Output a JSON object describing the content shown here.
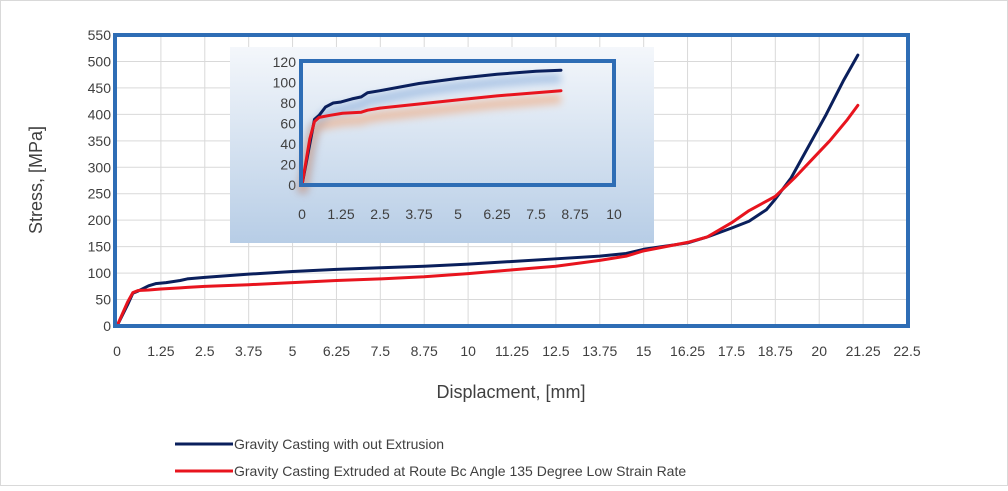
{
  "chart_data": [
    {
      "type": "line",
      "title": "",
      "xlabel": "Displacment, [mm]",
      "ylabel": "Stress, [MPa]",
      "xlim": [
        0,
        22.5
      ],
      "ylim": [
        0,
        550
      ],
      "x_ticks": [
        "0",
        "1.25",
        "2.5",
        "3.75",
        "5",
        "6.25",
        "7.5",
        "8.75",
        "10",
        "11.25",
        "12.5",
        "13.75",
        "15",
        "16.25",
        "17.5",
        "18.75",
        "20",
        "21.25",
        "22.5"
      ],
      "y_ticks": [
        "0",
        "50",
        "100",
        "150",
        "200",
        "250",
        "300",
        "350",
        "400",
        "450",
        "500",
        "550"
      ],
      "grid": true,
      "legend_position": "bottom",
      "series": [
        {
          "name": "Gravity Casting with out Extrusion",
          "color": "#0a1f5c",
          "points": [
            [
              0,
              0
            ],
            [
              0.3,
              40
            ],
            [
              0.45,
              62
            ],
            [
              0.6,
              66
            ],
            [
              0.9,
              76
            ],
            [
              1.1,
              80
            ],
            [
              1.4,
              82
            ],
            [
              1.8,
              86
            ],
            [
              2.0,
              89
            ],
            [
              2.5,
              92
            ],
            [
              3.75,
              98
            ],
            [
              5,
              103
            ],
            [
              6.25,
              107
            ],
            [
              7.5,
              110
            ],
            [
              8.75,
              113
            ],
            [
              10,
              117
            ],
            [
              11.25,
              122
            ],
            [
              12.5,
              127
            ],
            [
              13.75,
              132
            ],
            [
              14.5,
              137
            ],
            [
              15,
              145
            ],
            [
              16.25,
              157
            ],
            [
              16.8,
              168
            ],
            [
              17.5,
              185
            ],
            [
              18,
              198
            ],
            [
              18.5,
              220
            ],
            [
              18.75,
              240
            ],
            [
              19.2,
              280
            ],
            [
              19.7,
              340
            ],
            [
              20.2,
              400
            ],
            [
              20.7,
              465
            ],
            [
              21.1,
              512
            ]
          ]
        },
        {
          "name": "Gravity Casting Extruded at Route Bc Angle 135 Degree Low Strain Rate",
          "color": "#e8141e",
          "points": [
            [
              0,
              0
            ],
            [
              0.3,
              45
            ],
            [
              0.45,
              63
            ],
            [
              0.6,
              67
            ],
            [
              0.9,
              68
            ],
            [
              1.25,
              70
            ],
            [
              1.8,
              72
            ],
            [
              2.0,
              73
            ],
            [
              2.5,
              75
            ],
            [
              3.75,
              78
            ],
            [
              5,
              82
            ],
            [
              6.25,
              86
            ],
            [
              7.5,
              89
            ],
            [
              8.75,
              93
            ],
            [
              10,
              99
            ],
            [
              11.25,
              106
            ],
            [
              12.5,
              113
            ],
            [
              13.75,
              124
            ],
            [
              14.5,
              132
            ],
            [
              15,
              142
            ],
            [
              16.25,
              158
            ],
            [
              16.8,
              168
            ],
            [
              17.5,
              195
            ],
            [
              18,
              218
            ],
            [
              18.75,
              245
            ],
            [
              19.3,
              280
            ],
            [
              19.8,
              315
            ],
            [
              20.3,
              350
            ],
            [
              20.8,
              390
            ],
            [
              21.1,
              417
            ]
          ]
        }
      ]
    },
    {
      "type": "line",
      "title": "",
      "xlabel": "",
      "ylabel": "",
      "xlim": [
        0,
        10
      ],
      "ylim": [
        0,
        120
      ],
      "x_ticks": [
        "0",
        "1.25",
        "2.5",
        "3.75",
        "5",
        "6.25",
        "7.5",
        "8.75",
        "10"
      ],
      "y_ticks": [
        "0",
        "20",
        "40",
        "60",
        "80",
        "100",
        "120"
      ],
      "grid": false,
      "series": [
        {
          "name": "Gravity Casting with out Extrusion",
          "color": "#0a1f5c",
          "points": [
            [
              0,
              0
            ],
            [
              0.25,
              40
            ],
            [
              0.4,
              64
            ],
            [
              0.55,
              68
            ],
            [
              0.75,
              76
            ],
            [
              1.0,
              80
            ],
            [
              1.25,
              81
            ],
            [
              1.6,
              84
            ],
            [
              1.9,
              86
            ],
            [
              2.1,
              90
            ],
            [
              2.5,
              92
            ],
            [
              3.75,
              99
            ],
            [
              5,
              104
            ],
            [
              6.25,
              108
            ],
            [
              7.5,
              111
            ],
            [
              8.3,
              112
            ]
          ]
        },
        {
          "name": "Gravity Casting Extruded at Route Bc Angle 135 Degree Low Strain Rate",
          "color": "#e8141e",
          "points": [
            [
              0,
              0
            ],
            [
              0.25,
              45
            ],
            [
              0.4,
              62
            ],
            [
              0.55,
              66
            ],
            [
              0.9,
              68
            ],
            [
              1.3,
              70
            ],
            [
              1.9,
              71
            ],
            [
              2.1,
              73
            ],
            [
              2.5,
              75
            ],
            [
              3.75,
              79
            ],
            [
              5,
              83
            ],
            [
              6.25,
              87
            ],
            [
              7.5,
              90
            ],
            [
              8.3,
              92
            ]
          ]
        }
      ]
    }
  ]
}
